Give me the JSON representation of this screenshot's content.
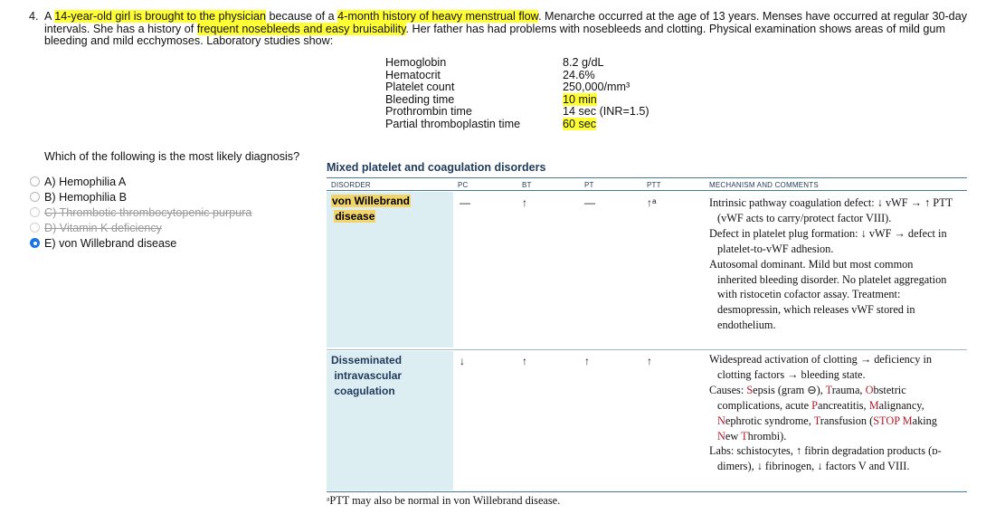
{
  "question": {
    "number": "4.",
    "parts": [
      {
        "t": "A ",
        "hl": false
      },
      {
        "t": "14-year-old girl is brought to the physician",
        "hl": true
      },
      {
        "t": " because of a ",
        "hl": false
      },
      {
        "t": "4-month history of heavy menstrual flow",
        "hl": true
      },
      {
        "t": ". Menarche occurred at the age of 13 years. Menses have occurred at regular 30-day intervals. She has a history of ",
        "hl": false
      },
      {
        "t": "frequent nosebleeds and easy bruisability",
        "hl": true
      },
      {
        "t": ". Her father has had problems with nosebleeds and clotting. Physical examination shows areas of mild gum bleeding and mild ecchymoses. Laboratory studies show:",
        "hl": false
      }
    ]
  },
  "labs": [
    {
      "name": "Hemoglobin",
      "value": "8.2 g/dL",
      "hl": false
    },
    {
      "name": "Hematocrit",
      "value": "24.6%",
      "hl": false
    },
    {
      "name": "Platelet count",
      "value": "250,000/mm³",
      "hl": false
    },
    {
      "name": "Bleeding time",
      "value": "10 min",
      "hl": true
    },
    {
      "name": "Prothrombin time",
      "value": "14 sec (INR=1.5)",
      "hl": false
    },
    {
      "name": "Partial thromboplastin time",
      "value": "60 sec",
      "hl": true
    }
  ],
  "prompt": "Which of the following is the most likely diagnosis?",
  "options": [
    {
      "label": "A) Hemophilia A",
      "struck": false,
      "selected": false
    },
    {
      "label": "B) Hemophilia B",
      "struck": false,
      "selected": false
    },
    {
      "label": "C) Thrombotic thrombocytopenic purpura",
      "struck": true,
      "selected": false
    },
    {
      "label": "D) Vitamin K deficiency",
      "struck": true,
      "selected": false
    },
    {
      "label": "E) von Willebrand disease",
      "struck": false,
      "selected": true
    }
  ],
  "table": {
    "title": "Mixed platelet and coagulation disorders",
    "headers": {
      "disorder": "DISORDER",
      "pc": "PC",
      "bt": "BT",
      "pt": "PT",
      "ptt": "PTT",
      "mech": "MECHANISM AND COMMENTS"
    },
    "vwd": {
      "name_line1": "von Willebrand",
      "name_line2": "disease",
      "pc": "—",
      "bt": "↑",
      "pt": "—",
      "ptt": "↑ᵃ",
      "mech": [
        "Intrinsic pathway coagulation defect: ↓ vWF → ↑ PTT (vWF acts to carry/protect factor VIII).",
        "Defect in platelet plug formation: ↓ vWF → defect in platelet-to-vWF adhesion.",
        "Autosomal dominant. Mild but most common inherited bleeding disorder. No platelet aggregation with ristocetin cofactor assay. Treatment: desmopressin, which releases vWF stored in endothelium."
      ]
    },
    "dic": {
      "name_line1": "Disseminated",
      "name_line2": "intravascular",
      "name_line3": "coagulation",
      "pc": "↓",
      "bt": "↑",
      "pt": "↑",
      "ptt": "↑",
      "mech1": "Widespread activation of clotting → deficiency in clotting factors → bleeding state.",
      "causes_prefix": "Causes: ",
      "c_sepsis_s": "S",
      "c_sepsis": "epsis (gram ⊖), ",
      "c_trauma_t": "T",
      "c_trauma": "rauma, ",
      "c_obst_o": "O",
      "c_obst": "bstetric complications, acute ",
      "c_pan_p": "P",
      "c_pan": "ancreatitis, ",
      "c_mal_m": "M",
      "c_mal": "alignancy, ",
      "c_nep_n": "N",
      "c_nep": "ephrotic syndrome, ",
      "c_tra_t": "T",
      "c_tra": "ransfusion (",
      "mn_stop": "STOP",
      "mn_m": " M",
      "mn_aking": "aking ",
      "mn_n": "N",
      "mn_ew": "ew ",
      "mn_t": "T",
      "mn_hrombi": "hrombi",
      "mn_close": ").",
      "labs": "Labs: schistocytes, ↑ fibrin degradation products (ᴅ-dimers), ↓ fibrinogen, ↓ factors V and VIII."
    },
    "footnote": "ᵃPTT may also be normal in von Willebrand disease."
  }
}
